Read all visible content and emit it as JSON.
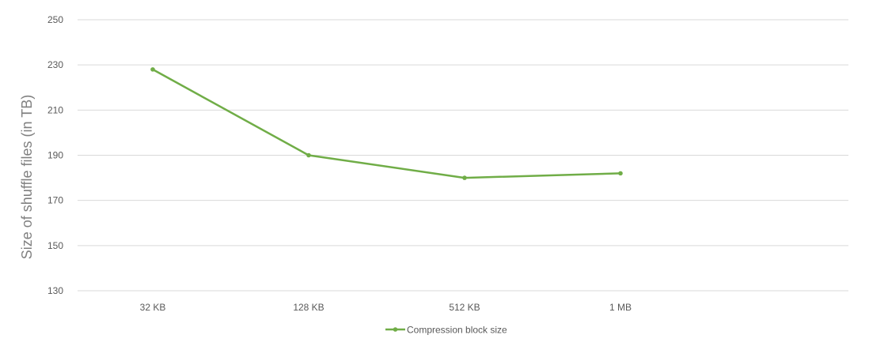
{
  "chart_data": {
    "type": "line",
    "title": "",
    "xlabel": "",
    "ylabel": "Size of shuffle files (in TB)",
    "categories": [
      "32 KB",
      "128 KB",
      "512 KB",
      "1 MB"
    ],
    "series": [
      {
        "name": "Compression block size",
        "values": [
          228,
          190,
          180,
          182
        ],
        "color": "#70ad47"
      }
    ],
    "ylim": [
      130,
      250
    ],
    "yticks": [
      130,
      150,
      170,
      190,
      210,
      230,
      250
    ],
    "grid": true,
    "legend": "bottom"
  }
}
